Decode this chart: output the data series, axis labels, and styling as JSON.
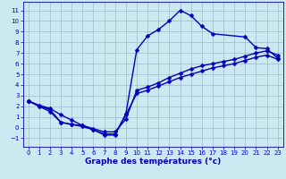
{
  "xlabel": "Graphe des températures (°c)",
  "bg_color": "#cce8f0",
  "line_color": "#0000bb",
  "grid_color": "#99bbcc",
  "xlim": [
    -0.5,
    23.5
  ],
  "ylim": [
    -1.8,
    11.8
  ],
  "xticks": [
    0,
    1,
    2,
    3,
    4,
    5,
    6,
    7,
    8,
    9,
    10,
    11,
    12,
    13,
    14,
    15,
    16,
    17,
    18,
    19,
    20,
    21,
    22,
    23
  ],
  "yticks": [
    -1,
    0,
    1,
    2,
    3,
    4,
    5,
    6,
    7,
    8,
    9,
    10,
    11
  ],
  "line1_x": [
    0,
    1,
    2,
    3,
    4,
    5,
    6,
    7,
    8,
    9,
    10,
    11,
    12,
    13,
    14,
    15,
    16,
    17,
    18,
    19,
    20,
    21,
    22,
    23
  ],
  "line1_y": [
    2.5,
    2.0,
    1.7,
    0.5,
    0.3,
    0.1,
    -0.2,
    -0.6,
    -0.6,
    1.2,
    3.2,
    3.5,
    3.9,
    4.3,
    4.7,
    5.0,
    5.3,
    5.6,
    5.8,
    6.0,
    6.3,
    6.6,
    6.8,
    6.4
  ],
  "line2_x": [
    0,
    1,
    2,
    3,
    4,
    5,
    6,
    7,
    8,
    9,
    10,
    11,
    12,
    13,
    14,
    15,
    16,
    17,
    18,
    19,
    20,
    21,
    22,
    23
  ],
  "line2_y": [
    2.5,
    2.1,
    1.8,
    1.2,
    0.7,
    0.2,
    -0.1,
    -0.4,
    -0.4,
    0.8,
    3.5,
    3.8,
    4.2,
    4.7,
    5.1,
    5.5,
    5.8,
    6.0,
    6.2,
    6.4,
    6.7,
    7.0,
    7.2,
    6.8
  ],
  "line3_x": [
    0,
    1,
    2,
    3,
    4,
    5,
    6,
    7,
    8,
    9,
    10,
    11,
    12,
    13,
    14,
    15,
    16,
    17,
    20,
    21,
    22,
    23
  ],
  "line3_y": [
    2.5,
    2.0,
    1.5,
    0.5,
    0.3,
    0.2,
    -0.2,
    -0.7,
    -0.7,
    1.3,
    7.3,
    8.6,
    9.2,
    10.0,
    11.0,
    10.5,
    9.5,
    8.8,
    8.5,
    7.5,
    7.4,
    6.5
  ],
  "marker": "D",
  "markersize": 2.5,
  "linewidth": 1.0,
  "tick_fontsize": 5.0,
  "label_fontsize": 6.5,
  "xlabel_fontsize": 6.5
}
